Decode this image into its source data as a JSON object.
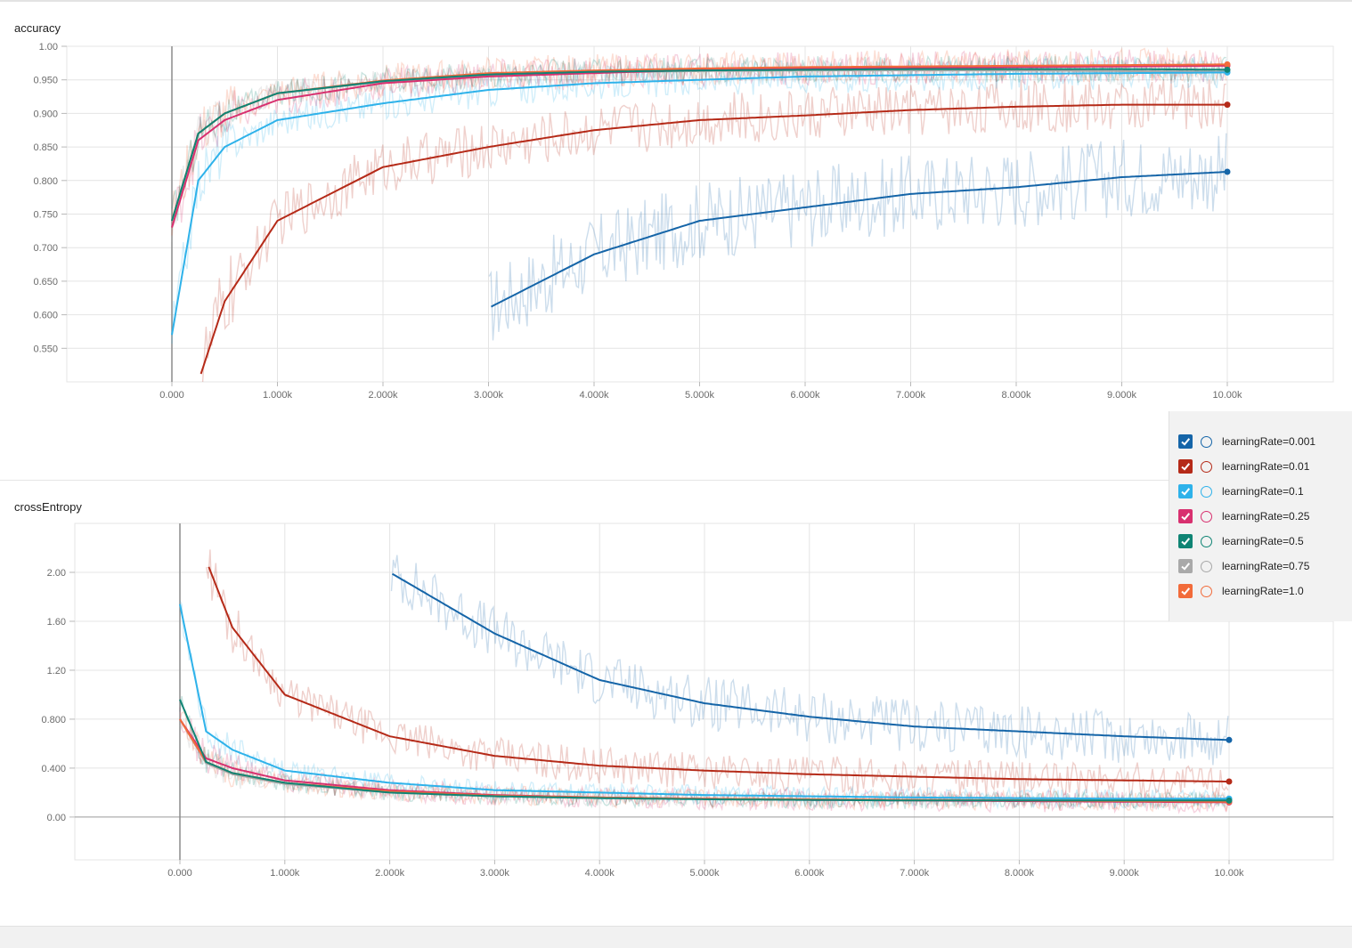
{
  "charts": {
    "accuracy": {
      "title": "accuracy"
    },
    "crossEntropy": {
      "title": "crossEntropy"
    }
  },
  "legend": {
    "items": [
      {
        "label": "learningRate=0.001",
        "color": "#1565a8",
        "checked": true
      },
      {
        "label": "learningRate=0.01",
        "color": "#b52a18",
        "checked": true
      },
      {
        "label": "learningRate=0.1",
        "color": "#2eb2ea",
        "checked": true
      },
      {
        "label": "learningRate=0.25",
        "color": "#d8306f",
        "checked": true
      },
      {
        "label": "learningRate=0.5",
        "color": "#0f8474",
        "checked": true
      },
      {
        "label": "learningRate=0.75",
        "color": "#a9a9a9",
        "checked": true
      },
      {
        "label": "learningRate=1.0",
        "color": "#f26b3a",
        "checked": true
      }
    ]
  },
  "chart_data": [
    {
      "type": "line",
      "title": "accuracy",
      "xlabel": "",
      "ylabel": "",
      "xlim": [
        0,
        10000
      ],
      "ylim": [
        0.5,
        1.0
      ],
      "x_ticks": [
        "0.000",
        "1.000k",
        "2.000k",
        "3.000k",
        "4.000k",
        "5.000k",
        "6.000k",
        "7.000k",
        "8.000k",
        "9.000k",
        "10.00k"
      ],
      "y_ticks": [
        "1.00",
        "0.950",
        "0.900",
        "0.850",
        "0.800",
        "0.750",
        "0.700",
        "0.650",
        "0.600",
        "0.550"
      ],
      "grid": true,
      "x": [
        0,
        250,
        500,
        1000,
        2000,
        3000,
        4000,
        5000,
        6000,
        7000,
        8000,
        9000,
        10000
      ],
      "series": [
        {
          "name": "learningRate=0.001",
          "values": [
            null,
            null,
            null,
            null,
            null,
            0.61,
            0.69,
            0.74,
            0.76,
            0.78,
            0.79,
            0.805,
            0.813
          ]
        },
        {
          "name": "learningRate=0.01",
          "values": [
            null,
            0.5,
            0.62,
            0.74,
            0.82,
            0.85,
            0.875,
            0.89,
            0.897,
            0.905,
            0.91,
            0.913,
            0.913
          ]
        },
        {
          "name": "learningRate=0.1",
          "values": [
            0.57,
            0.8,
            0.85,
            0.89,
            0.915,
            0.935,
            0.945,
            0.95,
            0.955,
            0.957,
            0.959,
            0.96,
            0.961
          ]
        },
        {
          "name": "learningRate=0.25",
          "values": [
            0.73,
            0.86,
            0.89,
            0.92,
            0.945,
            0.955,
            0.96,
            0.965,
            0.967,
            0.968,
            0.969,
            0.97,
            0.971
          ]
        },
        {
          "name": "learningRate=0.5",
          "values": [
            0.74,
            0.87,
            0.9,
            0.93,
            0.948,
            0.958,
            0.962,
            0.964,
            0.965,
            0.966,
            0.966,
            0.966,
            0.965
          ]
        },
        {
          "name": "learningRate=0.75",
          "values": [
            0.74,
            0.87,
            0.9,
            0.93,
            0.947,
            0.957,
            0.961,
            0.963,
            0.964,
            0.964,
            0.964,
            0.963,
            0.962
          ]
        },
        {
          "name": "learningRate=1.0",
          "values": [
            0.74,
            0.87,
            0.9,
            0.93,
            0.949,
            0.96,
            0.964,
            0.967,
            0.969,
            0.97,
            0.971,
            0.972,
            0.973
          ]
        }
      ]
    },
    {
      "type": "line",
      "title": "crossEntropy",
      "xlabel": "",
      "ylabel": "",
      "xlim": [
        0,
        10000
      ],
      "ylim": [
        -0.35,
        2.4
      ],
      "x_ticks": [
        "0.000",
        "1.000k",
        "2.000k",
        "3.000k",
        "4.000k",
        "5.000k",
        "6.000k",
        "7.000k",
        "8.000k",
        "9.000k",
        "10.00k"
      ],
      "y_ticks": [
        "2.00",
        "1.60",
        "1.20",
        "0.800",
        "0.400",
        "0.00"
      ],
      "grid": true,
      "x": [
        0,
        250,
        500,
        1000,
        2000,
        3000,
        4000,
        5000,
        6000,
        7000,
        8000,
        9000,
        10000
      ],
      "series": [
        {
          "name": "learningRate=0.001",
          "values": [
            null,
            null,
            null,
            null,
            2.0,
            1.5,
            1.12,
            0.93,
            0.82,
            0.74,
            0.7,
            0.66,
            0.63
          ]
        },
        {
          "name": "learningRate=0.01",
          "values": [
            null,
            2.1,
            1.55,
            1.0,
            0.66,
            0.5,
            0.42,
            0.38,
            0.35,
            0.33,
            0.31,
            0.3,
            0.29
          ]
        },
        {
          "name": "learningRate=0.1",
          "values": [
            1.74,
            0.7,
            0.55,
            0.38,
            0.28,
            0.22,
            0.2,
            0.18,
            0.17,
            0.16,
            0.155,
            0.15,
            0.15
          ]
        },
        {
          "name": "learningRate=0.25",
          "values": [
            0.8,
            0.48,
            0.4,
            0.3,
            0.22,
            0.18,
            0.16,
            0.15,
            0.14,
            0.135,
            0.13,
            0.125,
            0.12
          ]
        },
        {
          "name": "learningRate=0.5",
          "values": [
            0.96,
            0.45,
            0.36,
            0.28,
            0.2,
            0.17,
            0.155,
            0.145,
            0.14,
            0.135,
            0.135,
            0.135,
            0.135
          ]
        },
        {
          "name": "learningRate=0.75",
          "values": [
            0.8,
            0.44,
            0.35,
            0.27,
            0.2,
            0.17,
            0.155,
            0.148,
            0.143,
            0.14,
            0.14,
            0.14,
            0.14
          ]
        },
        {
          "name": "learningRate=1.0",
          "values": [
            0.8,
            0.45,
            0.36,
            0.28,
            0.21,
            0.175,
            0.16,
            0.15,
            0.145,
            0.14,
            0.135,
            0.13,
            0.125
          ]
        }
      ]
    }
  ]
}
